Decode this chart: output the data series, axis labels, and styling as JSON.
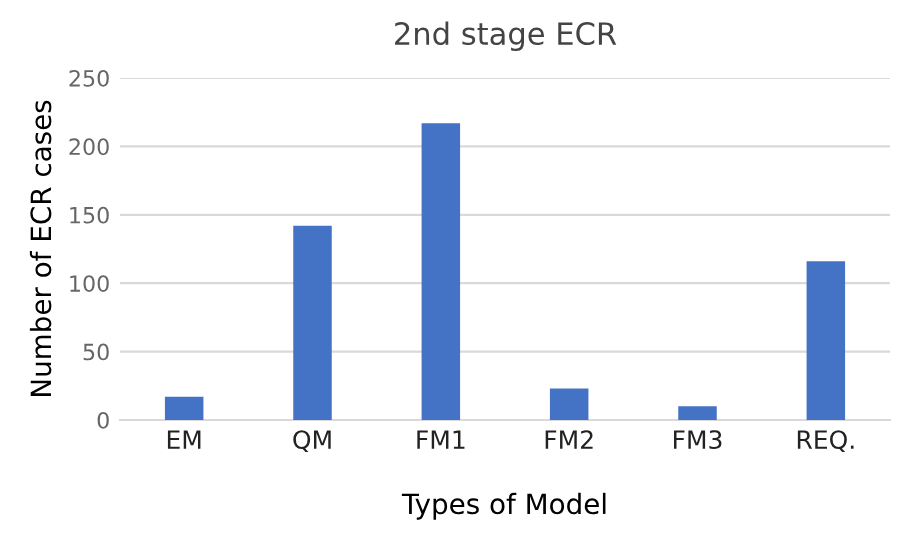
{
  "chart_data": {
    "type": "bar",
    "title": "2nd stage ECR",
    "xlabel": "Types of Model",
    "ylabel": "Number of ECR cases",
    "categories": [
      "EM",
      "QM",
      "FM1",
      "FM2",
      "FM3",
      "REQ."
    ],
    "values": [
      17,
      142,
      217,
      23,
      10,
      116
    ],
    "color": "#4472c4",
    "ylim": [
      0,
      250
    ],
    "yticks": [
      0,
      50,
      100,
      150,
      200,
      250
    ],
    "grid": "y"
  }
}
